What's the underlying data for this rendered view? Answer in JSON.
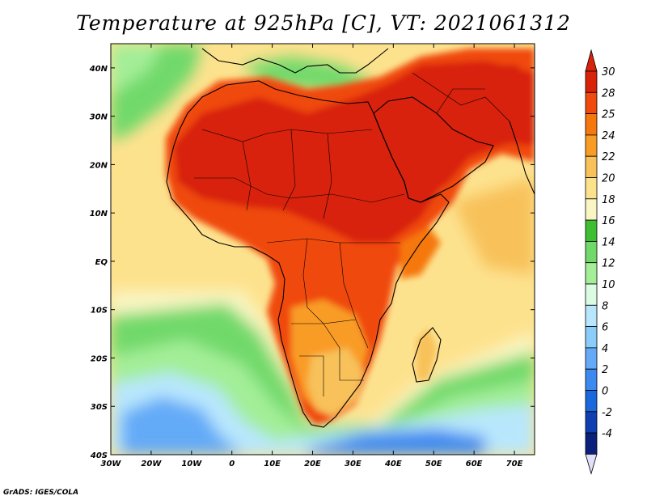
{
  "title": "Temperature at 925hPa [C], VT: 2021061312",
  "credit": "GrADS: IGES/COLA",
  "map": {
    "projection": "lat-lon",
    "lon_range": [
      -30,
      75
    ],
    "lat_range": [
      -40,
      45
    ],
    "lon_ticks": [
      "30W",
      "20W",
      "10W",
      "0",
      "10E",
      "20E",
      "30E",
      "40E",
      "50E",
      "60E",
      "70E"
    ],
    "lat_ticks": [
      "40N",
      "30N",
      "20N",
      "10N",
      "EQ",
      "10S",
      "20S",
      "30S",
      "40S"
    ],
    "field": "temperature_925hPa",
    "units": "C"
  },
  "colorbar": {
    "levels": [
      "30",
      "28",
      "25",
      "24",
      "22",
      "20",
      "18",
      "16",
      "14",
      "12",
      "10",
      "8",
      "6",
      "4",
      "2",
      "0",
      "-2",
      "-4"
    ],
    "colors": [
      "#d8220a",
      "#f04a0c",
      "#f5780f",
      "#f99c25",
      "#f8c15a",
      "#fde28e",
      "#f9f6c4",
      "#3fbe33",
      "#71d96a",
      "#a3ee97",
      "#dbfce2",
      "#b8e7fd",
      "#8acdfb",
      "#64aaf7",
      "#3c8af0",
      "#1a68dd",
      "#0f3fb0",
      "#0a207b"
    ],
    "top_color": "#d8220a",
    "bottom_color": "#e0e0fa"
  }
}
